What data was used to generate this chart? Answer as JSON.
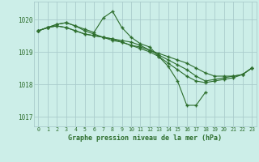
{
  "title": "Graphe pression niveau de la mer (hPa)",
  "bg_color": "#cceee8",
  "grid_color": "#aacccc",
  "line_color": "#2d6e2d",
  "marker": "+",
  "xlim": [
    -0.5,
    23.5
  ],
  "ylim": [
    1016.7,
    1020.55
  ],
  "yticks": [
    1017,
    1018,
    1019,
    1020
  ],
  "xticks": [
    0,
    1,
    2,
    3,
    4,
    5,
    6,
    7,
    8,
    9,
    10,
    11,
    12,
    13,
    14,
    15,
    16,
    17,
    18,
    19,
    20,
    21,
    22,
    23
  ],
  "series": [
    {
      "x": [
        0,
        1,
        2,
        3,
        4,
        5,
        6,
        7,
        8,
        9,
        10,
        11,
        12,
        13,
        14,
        15,
        16,
        17,
        18
      ],
      "y": [
        1019.65,
        1019.75,
        1019.85,
        1019.9,
        1019.8,
        1019.7,
        1019.6,
        1020.05,
        1020.25,
        1019.75,
        1019.45,
        1019.25,
        1019.15,
        1018.85,
        1018.55,
        1018.1,
        1017.35,
        1017.35,
        1017.75
      ]
    },
    {
      "x": [
        0,
        1,
        2,
        3,
        4,
        5,
        6,
        7,
        8,
        9,
        10,
        11,
        12,
        13,
        14,
        15,
        16,
        17,
        18,
        19,
        20,
        21,
        22,
        23
      ],
      "y": [
        1019.65,
        1019.75,
        1019.85,
        1019.9,
        1019.8,
        1019.65,
        1019.55,
        1019.45,
        1019.35,
        1019.3,
        1019.2,
        1019.15,
        1019.05,
        1018.95,
        1018.85,
        1018.75,
        1018.65,
        1018.5,
        1018.35,
        1018.25,
        1018.25,
        1018.25,
        1018.3,
        1018.5
      ]
    },
    {
      "x": [
        0,
        1,
        2,
        3,
        4,
        5,
        6,
        7,
        8,
        9,
        10,
        11,
        12,
        13,
        14,
        15,
        16,
        17,
        18,
        19,
        20,
        21,
        22,
        23
      ],
      "y": [
        1019.65,
        1019.75,
        1019.8,
        1019.75,
        1019.65,
        1019.55,
        1019.5,
        1019.45,
        1019.4,
        1019.35,
        1019.3,
        1019.2,
        1019.05,
        1018.9,
        1018.75,
        1018.6,
        1018.45,
        1018.25,
        1018.1,
        1018.15,
        1018.2,
        1018.25,
        1018.3,
        1018.5
      ]
    },
    {
      "x": [
        0,
        1,
        2,
        3,
        4,
        5,
        6,
        7,
        8,
        9,
        10,
        11,
        12,
        13,
        14,
        15,
        16,
        17,
        18,
        19,
        20,
        21,
        22,
        23
      ],
      "y": [
        1019.65,
        1019.75,
        1019.8,
        1019.75,
        1019.65,
        1019.55,
        1019.5,
        1019.45,
        1019.4,
        1019.3,
        1019.2,
        1019.1,
        1019.0,
        1018.85,
        1018.65,
        1018.45,
        1018.25,
        1018.1,
        1018.05,
        1018.1,
        1018.15,
        1018.2,
        1018.3,
        1018.5
      ]
    }
  ]
}
